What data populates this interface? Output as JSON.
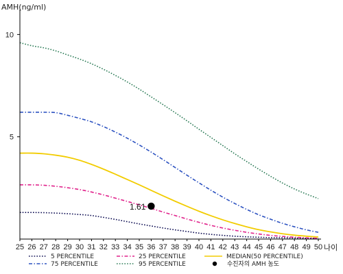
{
  "chart_data": {
    "type": "line",
    "ylabel": "AMH(ng/ml)",
    "xlabel": "나이",
    "x": [
      25,
      26,
      27,
      28,
      29,
      30,
      31,
      32,
      33,
      34,
      35,
      36,
      37,
      38,
      39,
      40,
      41,
      42,
      43,
      44,
      45,
      46,
      47,
      48,
      49,
      50
    ],
    "xlim": [
      25,
      50
    ],
    "ylim": [
      0,
      11
    ],
    "yticks": [
      5,
      10
    ],
    "grid": false,
    "legend_position": "bottom",
    "series": [
      {
        "name": "5 PERCENTILE",
        "color": "#0a0a50",
        "dash": "dotted",
        "values": [
          1.3,
          1.3,
          1.29,
          1.27,
          1.24,
          1.2,
          1.15,
          1.06,
          0.96,
          0.85,
          0.74,
          0.64,
          0.54,
          0.45,
          0.37,
          0.29,
          0.23,
          0.18,
          0.14,
          0.11,
          0.09,
          0.07,
          0.06,
          0.05,
          0.04,
          0.03
        ]
      },
      {
        "name": "25 PERCENTILE",
        "color": "#e0208a",
        "dash": "dashdot",
        "values": [
          2.65,
          2.65,
          2.63,
          2.58,
          2.51,
          2.42,
          2.3,
          2.16,
          2.0,
          1.84,
          1.67,
          1.5,
          1.32,
          1.15,
          0.98,
          0.82,
          0.67,
          0.54,
          0.43,
          0.33,
          0.25,
          0.18,
          0.13,
          0.09,
          0.06,
          0.04
        ]
      },
      {
        "name": "MEDIAN(50 PERCENTILE)",
        "color": "#f2cc00",
        "dash": "solid",
        "values": [
          4.2,
          4.2,
          4.17,
          4.1,
          4.0,
          3.85,
          3.65,
          3.42,
          3.17,
          2.91,
          2.65,
          2.38,
          2.11,
          1.85,
          1.6,
          1.36,
          1.14,
          0.94,
          0.76,
          0.6,
          0.46,
          0.35,
          0.26,
          0.19,
          0.14,
          0.1
        ]
      },
      {
        "name": "75 PERCENTILE",
        "color": "#2a50c0",
        "dash": "dashdot",
        "values": [
          6.2,
          6.2,
          6.2,
          6.18,
          6.05,
          5.9,
          5.73,
          5.5,
          5.23,
          4.93,
          4.6,
          4.25,
          3.88,
          3.5,
          3.12,
          2.75,
          2.39,
          2.05,
          1.74,
          1.45,
          1.19,
          0.97,
          0.77,
          0.6,
          0.45,
          0.33
        ]
      },
      {
        "name": "95 PERCENTILE",
        "color": "#2a7a55",
        "dash": "dotted",
        "values": [
          9.6,
          9.45,
          9.35,
          9.2,
          9.0,
          8.8,
          8.57,
          8.3,
          8.0,
          7.68,
          7.33,
          6.95,
          6.57,
          6.18,
          5.78,
          5.37,
          4.97,
          4.57,
          4.17,
          3.79,
          3.42,
          3.07,
          2.74,
          2.45,
          2.2,
          1.98
        ]
      }
    ],
    "points": [
      {
        "name": "수진자의 AMH 농도",
        "x": 36,
        "y": 1.61,
        "label": "1.61",
        "color": "#000000"
      }
    ]
  }
}
